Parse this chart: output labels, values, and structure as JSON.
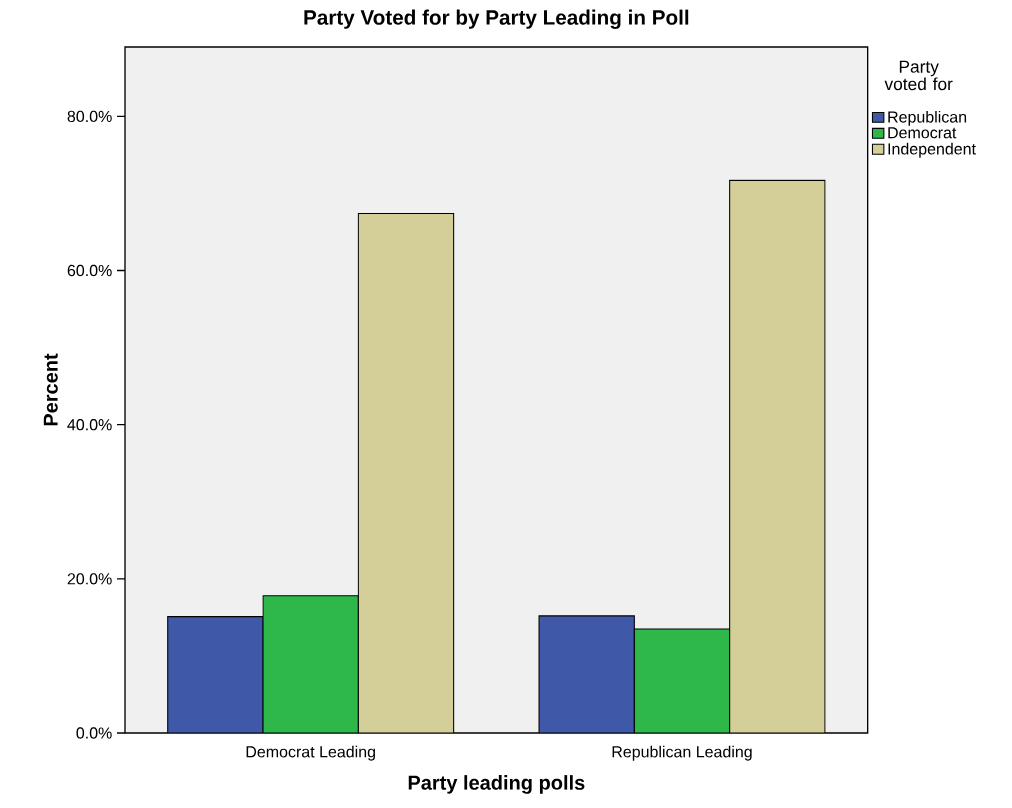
{
  "chart_data": {
    "type": "bar",
    "title": "Party Voted for by Party Leading in Poll",
    "xlabel": "Party leading polls",
    "ylabel": "Percent",
    "legend_title": "Party voted for",
    "categories": [
      "Democrat Leading",
      "Republican Leading"
    ],
    "series": [
      {
        "name": "Republican",
        "color": "#3f58a8",
        "values": [
          15.1,
          15.2
        ]
      },
      {
        "name": "Democrat",
        "color": "#2fb84a",
        "values": [
          17.8,
          13.5
        ]
      },
      {
        "name": "Independent",
        "color": "#d4cf98",
        "values": [
          67.4,
          71.7
        ]
      }
    ],
    "ylim": [
      0,
      89
    ],
    "yticks": [
      {
        "value": 0,
        "label": "0.0%"
      },
      {
        "value": 20,
        "label": "20.0%"
      },
      {
        "value": 40,
        "label": "40.0%"
      },
      {
        "value": 60,
        "label": "60.0%"
      },
      {
        "value": 80,
        "label": "80.0%"
      }
    ],
    "legend": "top right",
    "grid": false
  }
}
